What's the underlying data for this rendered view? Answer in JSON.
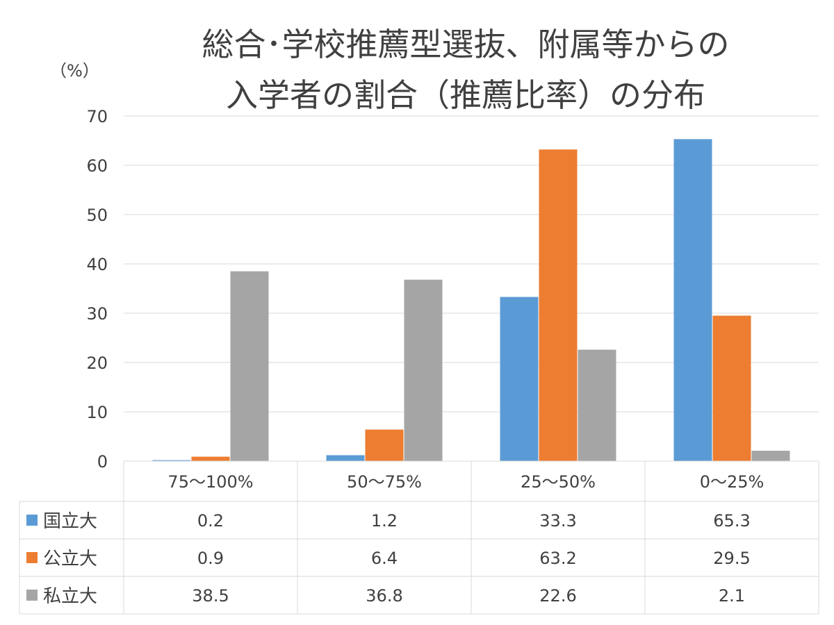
{
  "chart_data": {
    "type": "bar",
    "title_lines": [
      "総合･学校推薦型選抜、附属等からの",
      "入学者の割合（推薦比率）の分布"
    ],
    "ylabel": "（%）",
    "xlabel": "",
    "ylim": [
      0,
      70
    ],
    "yticks": [
      0,
      10,
      20,
      30,
      40,
      50,
      60,
      70
    ],
    "grid": true,
    "legend_placement": "data-table-left",
    "categories": [
      "75～100%",
      "50～75%",
      "25～50%",
      "0～25%"
    ],
    "series": [
      {
        "name": "国立大",
        "color": "#5b9bd5",
        "values": [
          0.2,
          1.2,
          33.3,
          65.3
        ]
      },
      {
        "name": "公立大",
        "color": "#ed7d31",
        "values": [
          0.9,
          6.4,
          63.2,
          29.5
        ]
      },
      {
        "name": "私立大",
        "color": "#a5a5a5",
        "values": [
          38.5,
          36.8,
          22.6,
          2.1
        ]
      }
    ],
    "table_values": [
      [
        "0.2",
        "1.2",
        "33.3",
        "65.3"
      ],
      [
        "0.9",
        "6.4",
        "63.2",
        "29.5"
      ],
      [
        "38.5",
        "36.8",
        "22.6",
        "2.1"
      ]
    ]
  }
}
